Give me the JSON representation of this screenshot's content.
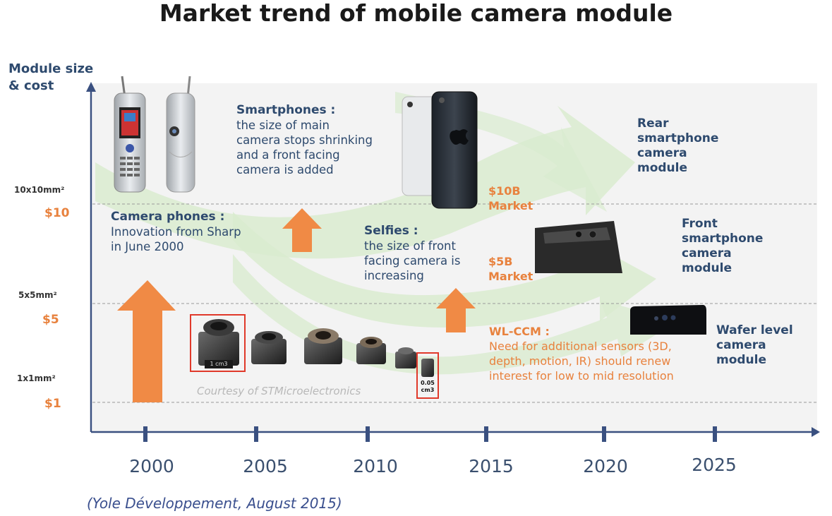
{
  "title": "Market trend of mobile camera module",
  "y_axis": {
    "line1": "Module size",
    "line2": "& cost"
  },
  "levels": [
    {
      "size": "10x10mm²",
      "cost": "$10"
    },
    {
      "size": "5x5mm²",
      "cost": "$5"
    },
    {
      "size": "1x1mm²",
      "cost": "$1"
    }
  ],
  "years": [
    "2000",
    "2005",
    "2010",
    "2015",
    "2020",
    "2025"
  ],
  "annotations": {
    "camera_phones": {
      "title": "Camera phones :",
      "lines": [
        "Innovation from Sharp",
        "in June 2000"
      ]
    },
    "smartphones": {
      "title": "Smartphones :",
      "lines": [
        "the size of main",
        "camera stops shrinking",
        "and a front facing",
        "camera is added"
      ]
    },
    "selfies": {
      "title": "Selfies :",
      "lines": [
        "the size of front",
        "facing camera is",
        "increasing"
      ]
    },
    "wlccm": {
      "title": "WL-CCM :",
      "lines": [
        "Need for additional sensors (3D,",
        "depth, motion, IR) should renew",
        "interest for low to mid resolution"
      ]
    }
  },
  "markets": {
    "m10b": {
      "line1": "$10B",
      "line2": "Market"
    },
    "m5b": {
      "line1": "$5B",
      "line2": "Market"
    }
  },
  "modules": {
    "rear": [
      "Rear",
      "smartphone",
      "camera",
      "module"
    ],
    "front": [
      "Front",
      "smartphone",
      "camera",
      "module"
    ],
    "wafer": [
      "Wafer level",
      "camera",
      "module"
    ]
  },
  "module_labels": {
    "big": "1 cm3",
    "small_a": "0.05",
    "small_b": "cm3"
  },
  "courtesy": "Courtesy of STMicroelectronics",
  "source": "(Yole Développement, August 2015)",
  "colors": {
    "navy": "#2e4a6e",
    "orange": "#e8823e",
    "arrow_green": "#d9ebcf",
    "plot_bg": "#f3f3f3"
  }
}
